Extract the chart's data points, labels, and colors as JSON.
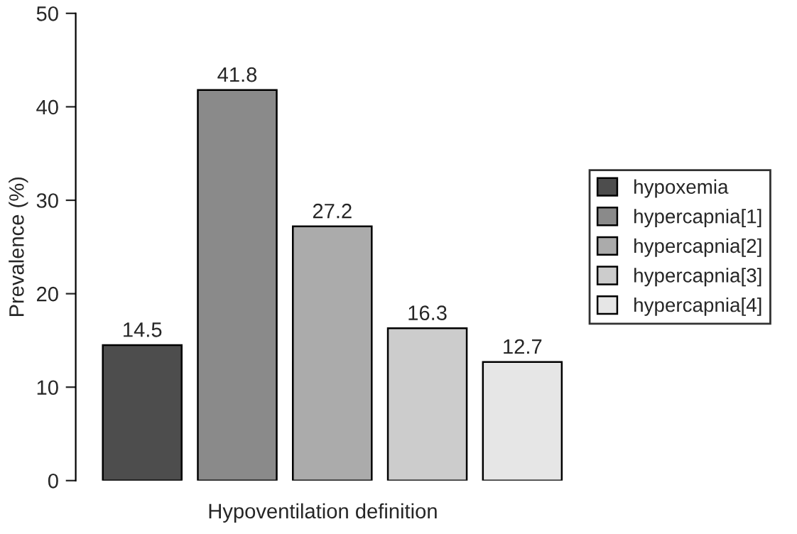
{
  "chart_data": {
    "type": "bar",
    "xlabel": "Hypoventilation definition",
    "ylabel": "Prevalence (%)",
    "categories": [
      null,
      null,
      null,
      null,
      null
    ],
    "stacked": true,
    "series": [
      {
        "name": "hypoxemia",
        "color": "#4d4d4d",
        "values": [
          14.5,
          0,
          0,
          0,
          0
        ],
        "value_labels": [
          "14.5",
          null,
          null,
          null,
          null
        ]
      },
      {
        "name": "hypercapnia[1]",
        "color": "#8a8a8a",
        "values": [
          0,
          41.8,
          0,
          0,
          0
        ],
        "value_labels": [
          null,
          "41.8",
          null,
          null,
          null
        ]
      },
      {
        "name": "hypercapnia[2]",
        "color": "#ababab",
        "values": [
          0,
          0,
          27.2,
          0,
          0
        ],
        "value_labels": [
          null,
          null,
          "27.2",
          null,
          null
        ]
      },
      {
        "name": "hypercapnia[3]",
        "color": "#cccccc",
        "values": [
          0,
          0,
          0,
          16.3,
          0
        ],
        "value_labels": [
          null,
          null,
          null,
          "16.3",
          null
        ]
      },
      {
        "name": "hypercapnia[4]",
        "color": "#e6e6e6",
        "values": [
          0,
          0,
          0,
          0,
          12.7
        ],
        "value_labels": [
          null,
          null,
          null,
          null,
          "12.7"
        ]
      }
    ],
    "ylim": [
      0,
      50
    ],
    "yticks": [
      0,
      10,
      20,
      30,
      40,
      50
    ],
    "grid": false,
    "legend": "right"
  }
}
